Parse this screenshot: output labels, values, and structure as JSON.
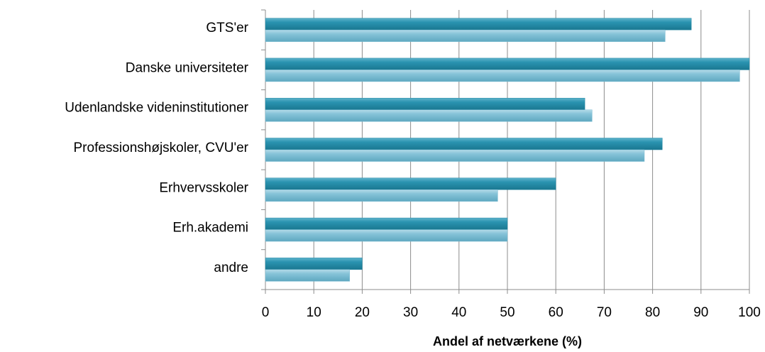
{
  "chart_data": {
    "type": "bar",
    "orientation": "horizontal",
    "x_label": "Andel af netværkene (%)",
    "categories": [
      "GTS'er",
      "Danske universiteter",
      "Udenlandske videninstitutioner",
      "Professionshøjskoler, CVU'er",
      "Erhvervsskoler",
      "Erh.akademi",
      "andre"
    ],
    "series": [
      {
        "color": "#1f86a3",
        "values": [
          88,
          100,
          66,
          82,
          60,
          50,
          20
        ]
      },
      {
        "color": "#79bcd3",
        "values": [
          82.6,
          98,
          67.5,
          78.3,
          48,
          50,
          17.4
        ]
      }
    ],
    "xlim": [
      0,
      100
    ],
    "xticks": [
      0,
      10,
      20,
      30,
      40,
      50,
      60,
      70,
      80,
      90,
      100
    ],
    "grid": true
  }
}
